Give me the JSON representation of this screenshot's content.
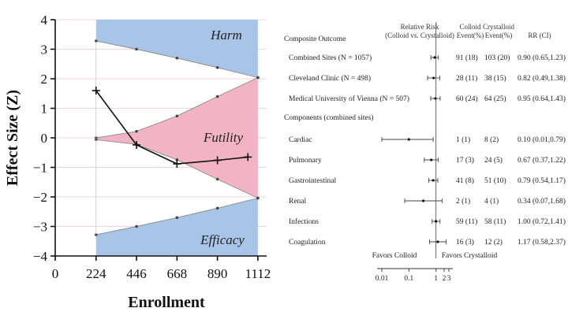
{
  "chart_data": [
    {
      "type": "line",
      "xlabel": "Enrollment",
      "ylabel": "Effect Size (Z)",
      "xticks": [
        0,
        224,
        446,
        668,
        890,
        1112
      ],
      "yticks": [
        -4,
        -3,
        -2,
        -1,
        0,
        1,
        2,
        3,
        4
      ],
      "xlim": [
        0,
        1160
      ],
      "ylim": [
        -4,
        4
      ],
      "regions": [
        {
          "label": "Harm",
          "color": "#a8c4e6"
        },
        {
          "label": "Futility",
          "color": "#f2b3c6"
        },
        {
          "label": "Efficacy",
          "color": "#a8c4e6"
        }
      ],
      "boundaries": {
        "x": [
          224,
          446,
          668,
          890,
          1112
        ],
        "harm_upper": [
          3.28,
          3.0,
          2.7,
          2.38,
          2.04
        ],
        "futility_upper": [
          0.0,
          0.22,
          0.74,
          1.4,
          2.04
        ],
        "futility_lower": [
          -0.06,
          -0.22,
          -0.74,
          -1.4,
          -2.04
        ],
        "efficacy_lower": [
          -3.28,
          -3.0,
          -2.7,
          -2.38,
          -2.04
        ]
      },
      "series": [
        {
          "x": [
            224,
            446,
            668,
            890,
            1057
          ],
          "y": [
            1.6,
            -0.24,
            -0.88,
            -0.76,
            -0.65
          ]
        }
      ]
    },
    {
      "type": "forest",
      "headers": {
        "outcome": "Composite Outcome",
        "rr_plot": "Relative Risk\n(Colloid vs. Crystalloid)",
        "colloid": "Colloid\nEvent(%)",
        "crystalloid": "Crystalloid\nEvent(%)",
        "rr_ci": "RR (CI)"
      },
      "section_components": "Components (combined sites)",
      "rows": [
        {
          "label": "Combined Sites (N = 1057)",
          "colloid": "91 (18)",
          "crystalloid": "103 (20)",
          "rr_ci": "0.90 (0.65,1.23)",
          "rr": 0.9,
          "lo": 0.65,
          "hi": 1.23
        },
        {
          "label": "Cleveland Clinic (N = 498)",
          "colloid": "28 (11)",
          "crystalloid": "38 (15)",
          "rr_ci": "0.82 (0.49,1.38)",
          "rr": 0.82,
          "lo": 0.49,
          "hi": 1.38
        },
        {
          "label": "Medical University of Vienna (N = 507)",
          "colloid": "60 (24)",
          "crystalloid": "64 (25)",
          "rr_ci": "0.95 (0.64,1.43)",
          "rr": 0.95,
          "lo": 0.64,
          "hi": 1.43
        },
        {
          "label": "Cardiac",
          "colloid": "1  (1)",
          "crystalloid": "8 (2)",
          "rr_ci": "0.10 (0.01,0.79)",
          "rr": 0.1,
          "lo": 0.01,
          "hi": 0.79
        },
        {
          "label": "Pulmonary",
          "colloid": "17 (3)",
          "crystalloid": "24 (5)",
          "rr_ci": "0.67 (0.37,1.22)",
          "rr": 0.67,
          "lo": 0.37,
          "hi": 1.22
        },
        {
          "label": "Gastrointestinal",
          "colloid": "41 (8)",
          "crystalloid": "51 (10)",
          "rr_ci": "0.79 (0.54,1.17)",
          "rr": 0.79,
          "lo": 0.54,
          "hi": 1.17
        },
        {
          "label": "Renal",
          "colloid": "2 (1)",
          "crystalloid": "4 (1)",
          "rr_ci": "0.34 (0.07,1.68)",
          "rr": 0.34,
          "lo": 0.07,
          "hi": 1.68
        },
        {
          "label": "Infections",
          "colloid": "59 (11)",
          "crystalloid": "58 (11)",
          "rr_ci": "1.00 (0.72,1.41)",
          "rr": 1.0,
          "lo": 0.72,
          "hi": 1.41
        },
        {
          "label": "Coagulation",
          "colloid": "16 (3)",
          "crystalloid": "12 (2)",
          "rr_ci": "1.17 (0.58,2.37)",
          "rr": 1.17,
          "lo": 0.58,
          "hi": 2.37
        }
      ],
      "favors_left": "Favors Colloid",
      "favors_right": "Favors Crystalloid",
      "xticks": [
        0.01,
        0.1,
        1,
        2,
        3
      ],
      "xtick_labels": [
        "0.01",
        "0.1",
        "1",
        "2",
        "3"
      ],
      "xscale": "log",
      "reference": 1
    }
  ]
}
